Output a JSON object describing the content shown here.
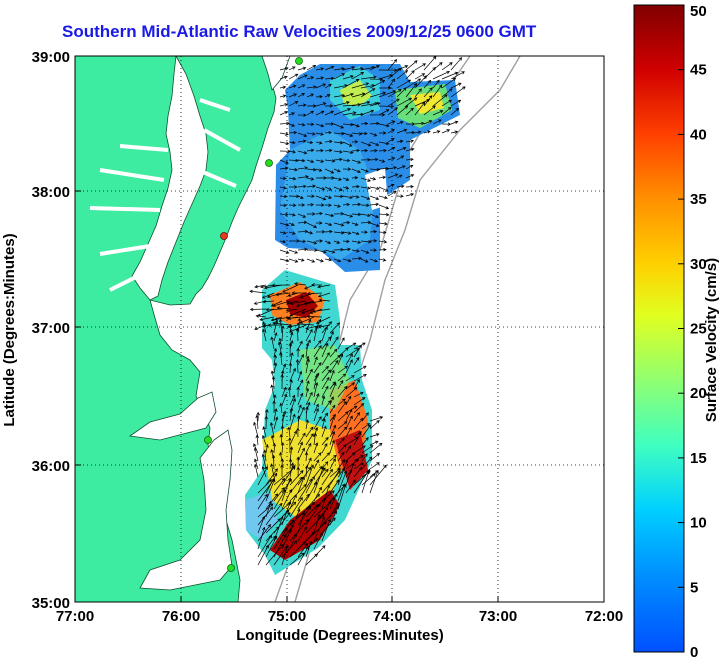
{
  "title": "Southern Mid-Atlantic Raw Velocities 2009/12/25 0600 GMT",
  "xlabel": "Longitude (Degrees:Minutes)",
  "ylabel": "Latitude (Degrees:Minutes)",
  "colorbar_label": "Surface Velocity (cm/s)",
  "x_ticks": [
    "77:00",
    "76:00",
    "75:00",
    "74:00",
    "73:00",
    "72:00"
  ],
  "y_ticks": [
    "39:00",
    "38:00",
    "37:00",
    "36:00",
    "35:00"
  ],
  "colorbar_ticks": [
    "50",
    "45",
    "40",
    "35",
    "30",
    "25",
    "20",
    "15",
    "10",
    "5",
    "0"
  ],
  "colors": {
    "land": "#3deca0",
    "water": "#ffffff",
    "title": "#1a1ae6",
    "station": "#22dd22",
    "station_alert": "#e83a1a"
  },
  "chart_data": {
    "type": "heatmap",
    "title": "Southern Mid-Atlantic Raw Velocities 2009/12/25 0600 GMT",
    "xlabel": "Longitude (Degrees:Minutes)",
    "ylabel": "Latitude (Degrees:Minutes)",
    "xlim_deg_west": [
      77,
      72
    ],
    "ylim_deg_north": [
      35,
      39
    ],
    "colorbar": {
      "label": "Surface Velocity (cm/s)",
      "range": [
        0,
        50
      ],
      "colormap": "jet"
    },
    "grid": true,
    "stations": [
      {
        "lon": 74.87,
        "lat": 39.06,
        "status": "ok"
      },
      {
        "lon": 75.1,
        "lat": 38.23,
        "status": "ok"
      },
      {
        "lon": 75.49,
        "lat": 37.69,
        "status": "alert"
      },
      {
        "lon": 75.68,
        "lat": 36.17,
        "status": "ok"
      },
      {
        "lon": 75.49,
        "lat": 35.27,
        "status": "ok"
      }
    ]
  }
}
